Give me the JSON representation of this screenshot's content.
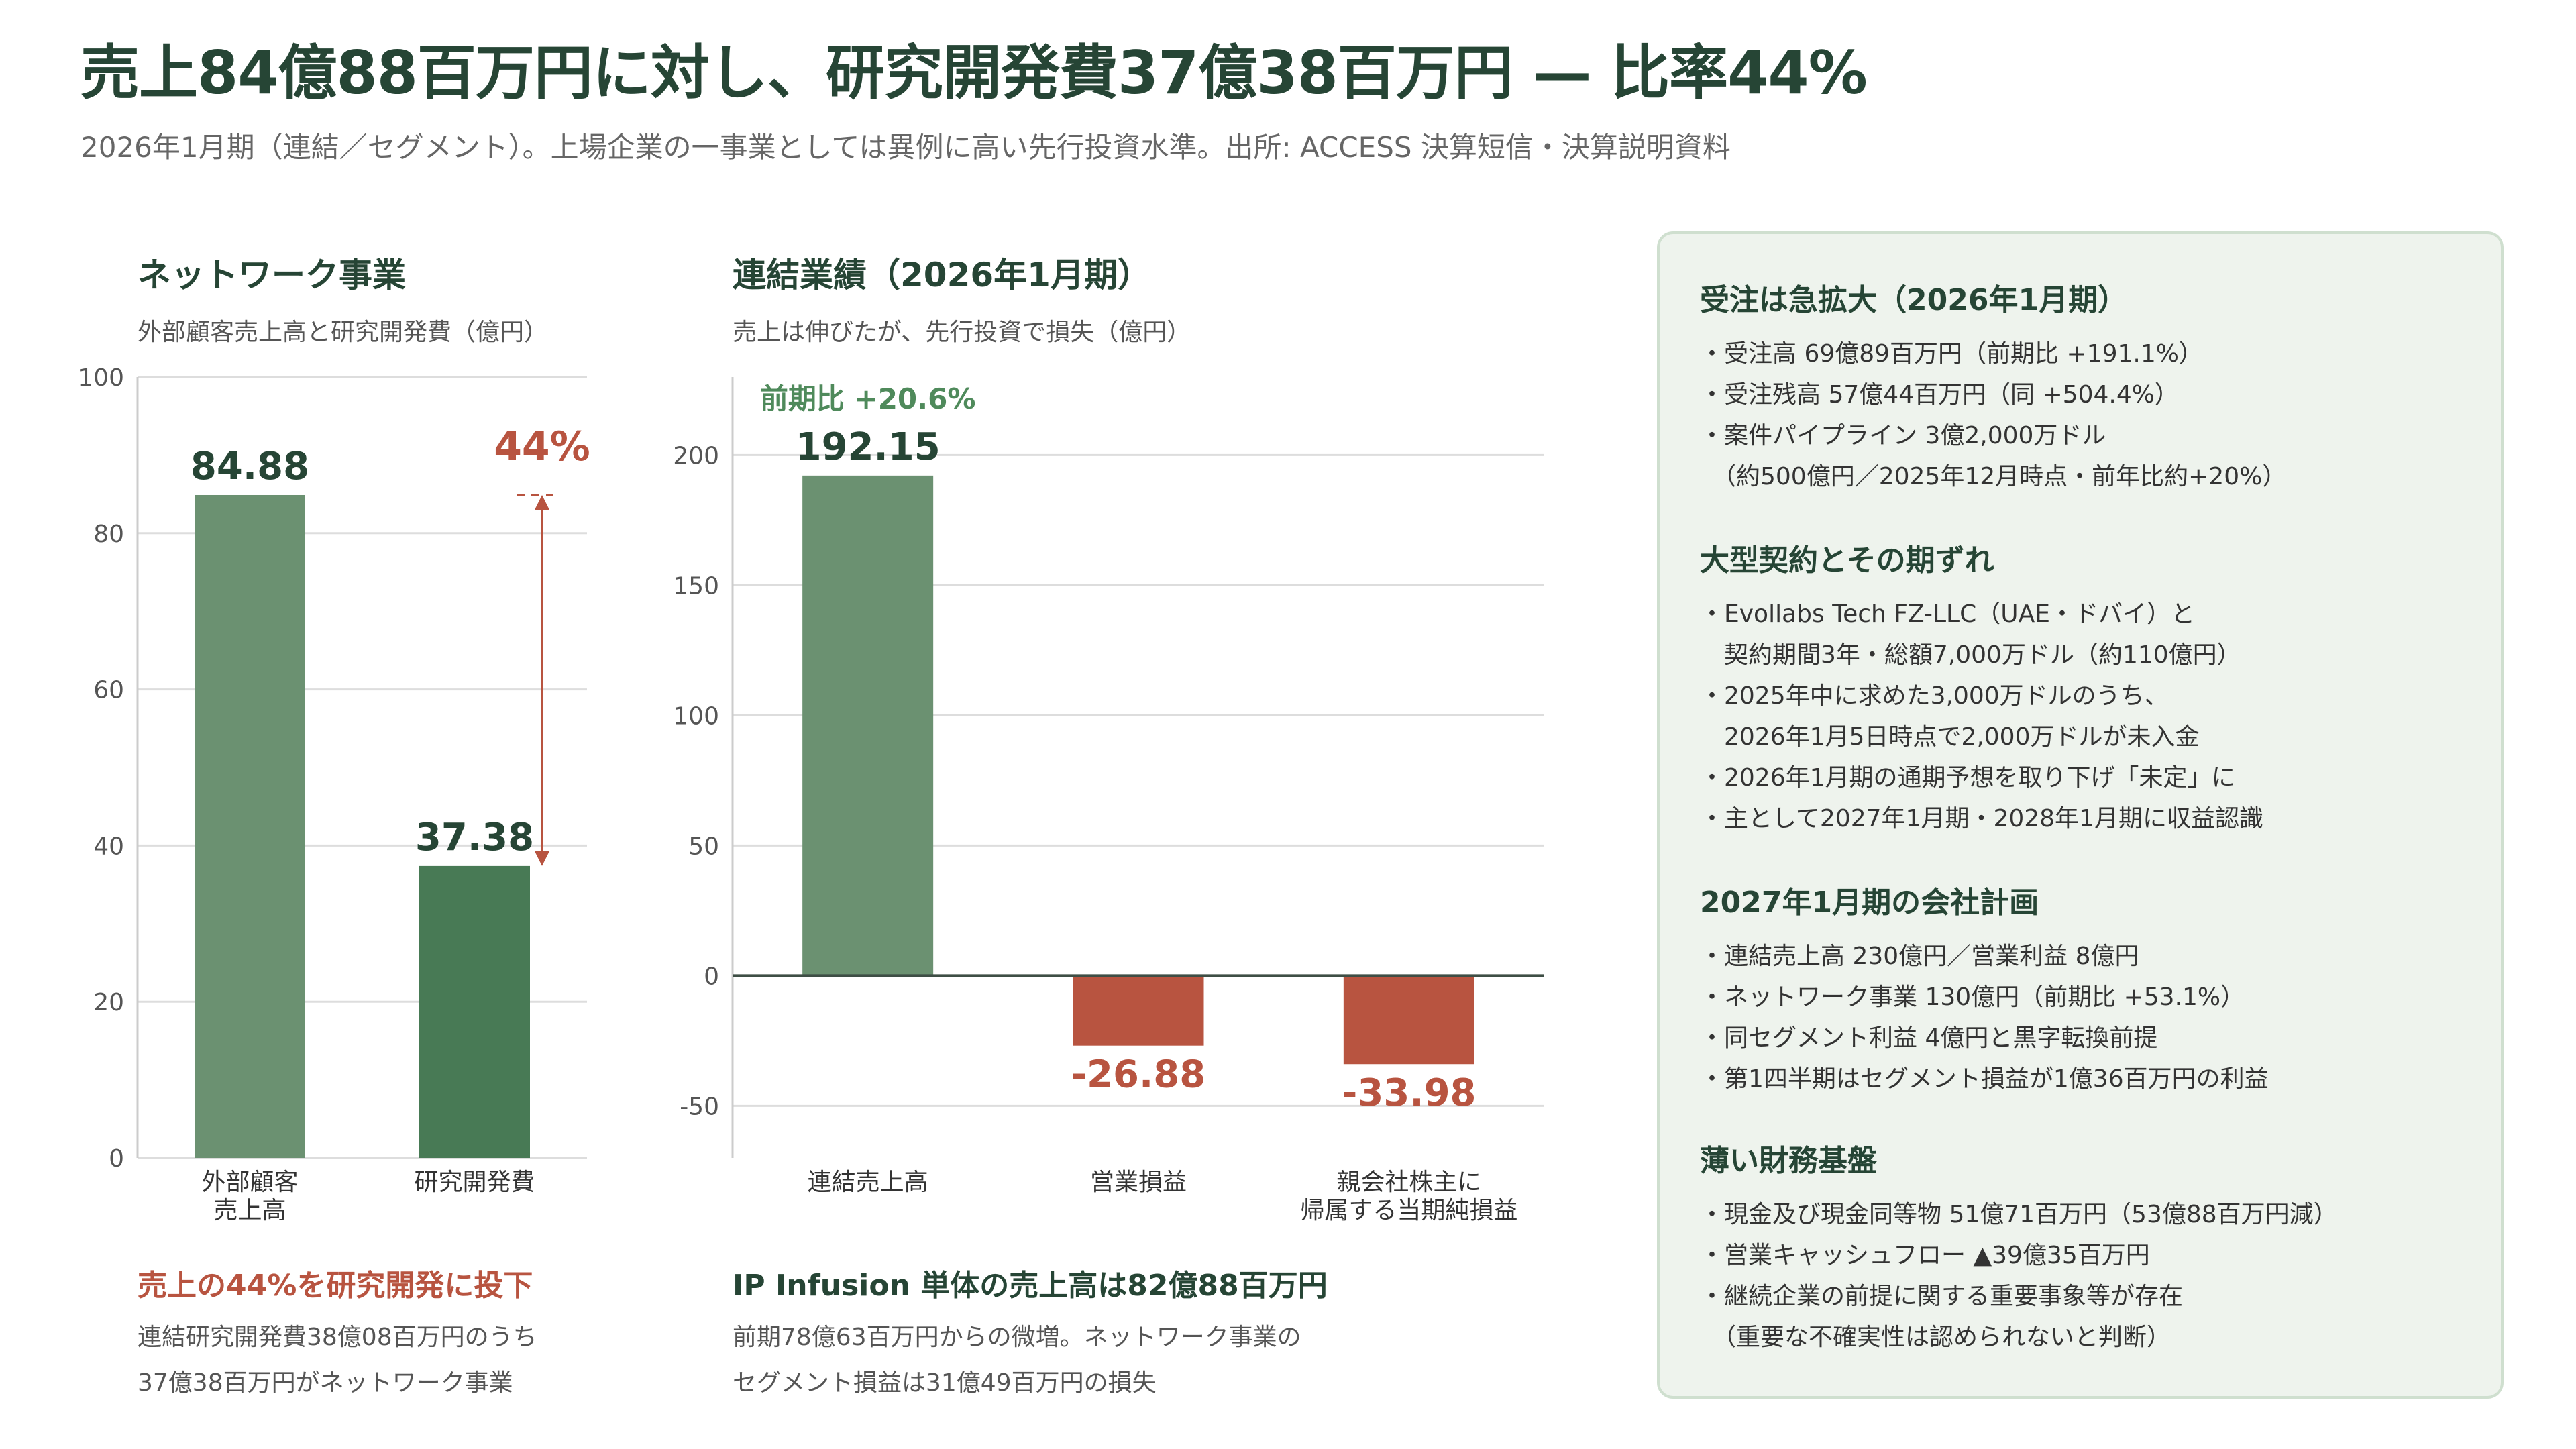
{
  "header": {
    "title": "売上84億88百万円に対し、研究開発費37億38百万円 — 比率44%",
    "subtitle": "2026年1月期（連結／セグメント）。上場企業の一事業としては異例に高い先行投資水準。出所: ACCESS 決算短信・決算説明資料"
  },
  "left_panel": {
    "title": "ネットワーク事業",
    "subtitle": "外部顧客売上高と研究開発費（億円）",
    "note_title": "売上の44%を研究開発に投下",
    "note_lines": [
      "連結研究開発費38億08百万円のうち",
      "37億38百万円がネットワーク事業"
    ]
  },
  "middle_panel": {
    "title": "連結業績（2026年1月期）",
    "subtitle": "売上は伸びたが、先行投資で損失（億円）",
    "note_title": "IP Infusion 単体の売上高は82億88百万円",
    "note_lines": [
      "前期78億63百万円からの微増。ネットワーク事業の",
      "セグメント損益は31億49百万円の損失"
    ]
  },
  "chart_data": [
    {
      "type": "bar",
      "title": "ネットワーク事業",
      "subtitle": "外部顧客売上高と研究開発費（億円）",
      "categories": [
        [
          "外部顧客",
          "売上高"
        ],
        [
          "研究開発費"
        ]
      ],
      "values": [
        84.88,
        37.38
      ],
      "value_labels": [
        "84.88",
        "37.38"
      ],
      "yticks": [
        0,
        20,
        40,
        60,
        80,
        100
      ],
      "ylim": [
        0,
        100
      ],
      "grid": true,
      "colors": [
        "#6b9171",
        "#487a55"
      ],
      "annotation": {
        "label": "44%",
        "from": 84.88,
        "to": 37.38,
        "color": "#b85440"
      }
    },
    {
      "type": "bar",
      "title": "連結業績（2026年1月期）",
      "subtitle": "売上は伸びたが、先行投資で損失（億円）",
      "categories": [
        [
          "連結売上高"
        ],
        [
          "営業損益"
        ],
        [
          "親会社株主に",
          "帰属する当期純損益"
        ]
      ],
      "values": [
        192.15,
        -26.88,
        -33.98
      ],
      "value_labels": [
        "192.15",
        "-26.88",
        "-33.98"
      ],
      "yticks": [
        -50,
        0,
        50,
        100,
        150,
        200
      ],
      "ylim": [
        -70,
        230
      ],
      "grid": true,
      "colors": [
        "#6b9171",
        "#b85440",
        "#b85440"
      ],
      "annotation": {
        "label": "前期比 +20.6%",
        "target": 0,
        "color": "#4f8a5b"
      }
    }
  ],
  "sidebar": {
    "sections": [
      {
        "title": "受注は急拡大（2026年1月期）",
        "items": [
          "・受注高 69億89百万円（前期比 +191.1%）",
          "・受注残高 57億44百万円（同 +504.4%）",
          "・案件パイプライン 3億2,000万ドル",
          "　（約500億円／2025年12月時点・前年比約+20%）"
        ]
      },
      {
        "title": "大型契約とその期ずれ",
        "items": [
          "・Evollabs Tech FZ-LLC（UAE・ドバイ）と",
          "　契約期間3年・総額7,000万ドル（約110億円）",
          "・2025年中に求めた3,000万ドルのうち、",
          "　2026年1月5日時点で2,000万ドルが未入金",
          "・2026年1月期の通期予想を取り下げ「未定」に",
          "・主として2027年1月期・2028年1月期に収益認識"
        ]
      },
      {
        "title": "2027年1月期の会社計画",
        "items": [
          "・連結売上高 230億円／営業利益 8億円",
          "・ネットワーク事業 130億円（前期比 +53.1%）",
          "・同セグメント利益 4億円と黒字転換前提",
          "・第1四半期はセグメント損益が1億36百万円の利益"
        ]
      },
      {
        "title": "薄い財務基盤",
        "items": [
          "・現金及び現金同等物 51億71百万円（53億88百万円減）",
          "・営業キャッシュフロー ▲39億35百万円",
          "・継続企業の前提に関する重要事象等が存在",
          "　（重要な不確実性は認められないと判断）"
        ]
      }
    ]
  }
}
